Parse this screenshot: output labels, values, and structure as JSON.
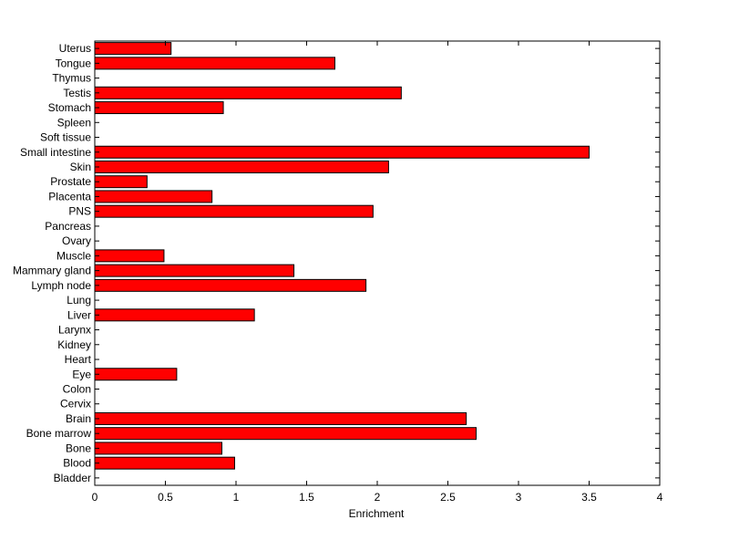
{
  "chart_data": {
    "type": "bar",
    "orientation": "horizontal",
    "categories": [
      "Uterus",
      "Tongue",
      "Thymus",
      "Testis",
      "Stomach",
      "Spleen",
      "Soft tissue",
      "Small intestine",
      "Skin",
      "Prostate",
      "Placenta",
      "PNS",
      "Pancreas",
      "Ovary",
      "Muscle",
      "Mammary gland",
      "Lymph node",
      "Lung",
      "Liver",
      "Larynx",
      "Kidney",
      "Heart",
      "Eye",
      "Colon",
      "Cervix",
      "Brain",
      "Bone marrow",
      "Bone",
      "Blood",
      "Bladder"
    ],
    "values": [
      0.54,
      1.7,
      0,
      2.17,
      0.91,
      0,
      0,
      3.5,
      2.08,
      0.37,
      0.83,
      1.97,
      0,
      0,
      0.49,
      1.41,
      1.92,
      0,
      1.13,
      0,
      0,
      0,
      0.58,
      0,
      0,
      2.63,
      2.7,
      0.9,
      0.99,
      0
    ],
    "title": "",
    "xlabel": "Enrichment",
    "ylabel": "",
    "xlim": [
      0,
      4
    ],
    "xticks": [
      "0",
      "0.5",
      "1",
      "1.5",
      "2",
      "2.5",
      "3",
      "3.5",
      "4"
    ],
    "grid": false,
    "bar_color": "#ff0000",
    "edge_color": "#000000"
  }
}
